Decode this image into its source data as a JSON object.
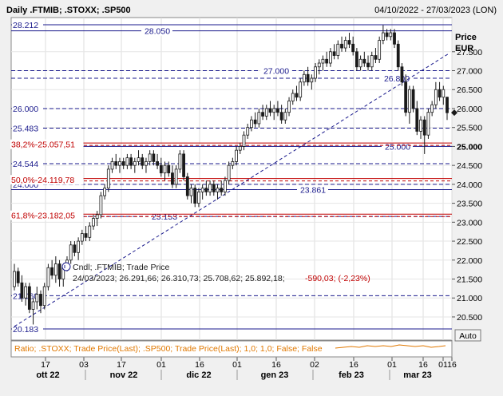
{
  "header": {
    "title": "Daily .FTMIB; .STOXX; .SP500",
    "date_range": "04/10/2022 - 27/03/2023 (LON)"
  },
  "axis": {
    "unit_label_1": "Price",
    "unit_label_2": "EUR",
    "auto_button": "Auto"
  },
  "legend": {
    "candle_line": "Cndl; .FTMIB; Trade Price",
    "ohlc_line": "24/03/2023; 26.291,66; 26.310,73; 25.708,62; 25.892,18;",
    "change_line": "-590,03; (-2,23%)"
  },
  "ratio_legend": {
    "text": "Ratio; .STOXX; Trade Price(Last); .SP500; Trade Price(Last);  1,0; 1,0; False; False",
    "color": "#e07800"
  },
  "colors": {
    "level_line": "#1a1a8c",
    "fib_line": "#c00000",
    "candle_up": "#ffffff",
    "candle_down": "#1a1a1a",
    "change_text": "#c00000"
  },
  "chart_data": {
    "type": "candlestick",
    "series_symbol": ".FTMIB",
    "ylim": [
      20.0,
      28.5
    ],
    "y_ticks": [
      "27.500",
      "27.000",
      "26.500",
      "26.000",
      "25.500",
      "25.000",
      "24.500",
      "24.000",
      "23.500",
      "23.000",
      "22.500",
      "22.000",
      "21.500",
      "21.000",
      "20.500"
    ],
    "current_price_label": "25.000",
    "x_day_ticks": [
      "17",
      "03",
      "17",
      "01",
      "16",
      "01",
      "16",
      "02",
      "16",
      "01",
      "16",
      "01",
      "16"
    ],
    "x_month_labels": [
      "ott 22",
      "nov 22",
      "dic 22",
      "gen 23",
      "feb 23",
      "mar 23"
    ],
    "levels": [
      {
        "value": 28.212,
        "label": "28.212",
        "pos": "left",
        "style": "solid"
      },
      {
        "value": 28.05,
        "label": "28.050",
        "pos": "center",
        "style": "solid"
      },
      {
        "value": 27.0,
        "label": "27.000",
        "pos": "center",
        "style": "dashed"
      },
      {
        "value": 26.8,
        "label": "26.800",
        "pos": "right",
        "style": "dashed"
      },
      {
        "value": 26.0,
        "label": "26.000",
        "pos": "left",
        "style": "dashed"
      },
      {
        "value": 25.483,
        "label": "25.483",
        "pos": "left",
        "style": "dashed"
      },
      {
        "value": 25.0,
        "label": "25.000",
        "pos": "right",
        "style": "solid"
      },
      {
        "value": 24.544,
        "label": "24.544",
        "pos": "left",
        "style": "dashed"
      },
      {
        "value": 24.0,
        "label": "24.000",
        "pos": "left",
        "style": "dashed"
      },
      {
        "value": 23.861,
        "label": "23.861",
        "pos": "center",
        "style": "solid"
      },
      {
        "value": 23.153,
        "label": "23.153",
        "pos": "center",
        "style": "dashed"
      },
      {
        "value": 21.06,
        "label": "21.060",
        "pos": "left",
        "style": "dashed"
      },
      {
        "value": 20.183,
        "label": "20.183",
        "pos": "left",
        "style": "solid"
      }
    ],
    "fib_levels": [
      {
        "value": 25.058,
        "label": "38,2%-25.057,51"
      },
      {
        "value": 24.12,
        "label": "50,0%-24.119,78"
      },
      {
        "value": 23.182,
        "label": "61,8%-23.182,05"
      }
    ],
    "trendline": [
      {
        "day": 0,
        "value": 20.25
      },
      {
        "day": 160,
        "value": 27.45
      }
    ],
    "candles": [
      {
        "day": 0,
        "o": 21.3,
        "h": 21.9,
        "l": 21.2,
        "c": 21.7
      },
      {
        "day": 1,
        "o": 21.7,
        "h": 21.8,
        "l": 21.3,
        "c": 21.4
      },
      {
        "day": 2,
        "o": 21.4,
        "h": 21.6,
        "l": 20.9,
        "c": 21.0
      },
      {
        "day": 3,
        "o": 21.0,
        "h": 21.4,
        "l": 20.8,
        "c": 21.3
      },
      {
        "day": 4,
        "o": 21.3,
        "h": 21.4,
        "l": 20.6,
        "c": 20.7
      },
      {
        "day": 5,
        "o": 20.7,
        "h": 21.0,
        "l": 20.3,
        "c": 20.9
      },
      {
        "day": 6,
        "o": 20.9,
        "h": 21.3,
        "l": 20.7,
        "c": 21.1
      },
      {
        "day": 7,
        "o": 21.1,
        "h": 21.2,
        "l": 20.6,
        "c": 20.8
      },
      {
        "day": 8,
        "o": 20.8,
        "h": 21.4,
        "l": 20.7,
        "c": 21.3
      },
      {
        "day": 9,
        "o": 21.3,
        "h": 21.9,
        "l": 21.2,
        "c": 21.8
      },
      {
        "day": 10,
        "o": 21.8,
        "h": 22.0,
        "l": 21.5,
        "c": 21.6
      },
      {
        "day": 11,
        "o": 21.6,
        "h": 22.1,
        "l": 21.4,
        "c": 21.9
      },
      {
        "day": 12,
        "o": 21.9,
        "h": 22.0,
        "l": 21.3,
        "c": 21.5
      },
      {
        "day": 13,
        "o": 21.5,
        "h": 21.9,
        "l": 21.3,
        "c": 21.8
      },
      {
        "day": 14,
        "o": 21.8,
        "h": 22.1,
        "l": 21.7,
        "c": 22.0
      },
      {
        "day": 15,
        "o": 22.0,
        "h": 22.5,
        "l": 21.9,
        "c": 22.4
      },
      {
        "day": 16,
        "o": 22.4,
        "h": 22.5,
        "l": 22.1,
        "c": 22.2
      },
      {
        "day": 17,
        "o": 22.2,
        "h": 22.6,
        "l": 22.0,
        "c": 22.5
      },
      {
        "day": 18,
        "o": 22.5,
        "h": 22.8,
        "l": 22.4,
        "c": 22.7
      },
      {
        "day": 19,
        "o": 22.7,
        "h": 22.9,
        "l": 22.5,
        "c": 22.6
      },
      {
        "day": 20,
        "o": 22.6,
        "h": 23.0,
        "l": 22.5,
        "c": 22.9
      },
      {
        "day": 21,
        "o": 22.9,
        "h": 23.2,
        "l": 22.8,
        "c": 23.1
      },
      {
        "day": 22,
        "o": 23.1,
        "h": 23.3,
        "l": 22.9,
        "c": 23.2
      },
      {
        "day": 23,
        "o": 23.2,
        "h": 23.8,
        "l": 23.1,
        "c": 23.7
      },
      {
        "day": 24,
        "o": 23.7,
        "h": 24.0,
        "l": 23.6,
        "c": 23.9
      },
      {
        "day": 25,
        "o": 23.9,
        "h": 24.5,
        "l": 23.8,
        "c": 24.4
      },
      {
        "day": 26,
        "o": 24.4,
        "h": 24.7,
        "l": 24.3,
        "c": 24.6
      },
      {
        "day": 27,
        "o": 24.6,
        "h": 24.8,
        "l": 24.4,
        "c": 24.5
      },
      {
        "day": 28,
        "o": 24.5,
        "h": 24.7,
        "l": 24.3,
        "c": 24.6
      },
      {
        "day": 29,
        "o": 24.6,
        "h": 24.7,
        "l": 24.4,
        "c": 24.5
      },
      {
        "day": 30,
        "o": 24.5,
        "h": 24.8,
        "l": 24.4,
        "c": 24.7
      },
      {
        "day": 31,
        "o": 24.7,
        "h": 24.8,
        "l": 24.4,
        "c": 24.5
      },
      {
        "day": 32,
        "o": 24.5,
        "h": 24.7,
        "l": 24.3,
        "c": 24.6
      },
      {
        "day": 33,
        "o": 24.6,
        "h": 24.9,
        "l": 24.5,
        "c": 24.7
      },
      {
        "day": 34,
        "o": 24.7,
        "h": 24.8,
        "l": 24.4,
        "c": 24.5
      },
      {
        "day": 35,
        "o": 24.5,
        "h": 24.7,
        "l": 24.3,
        "c": 24.6
      },
      {
        "day": 36,
        "o": 24.6,
        "h": 24.9,
        "l": 24.5,
        "c": 24.8
      },
      {
        "day": 37,
        "o": 24.8,
        "h": 24.9,
        "l": 24.5,
        "c": 24.6
      },
      {
        "day": 38,
        "o": 24.6,
        "h": 24.8,
        "l": 24.4,
        "c": 24.5
      },
      {
        "day": 39,
        "o": 24.5,
        "h": 24.7,
        "l": 24.2,
        "c": 24.3
      },
      {
        "day": 40,
        "o": 24.3,
        "h": 24.6,
        "l": 24.1,
        "c": 24.5
      },
      {
        "day": 41,
        "o": 24.5,
        "h": 24.6,
        "l": 24.2,
        "c": 24.3
      },
      {
        "day": 42,
        "o": 24.3,
        "h": 24.5,
        "l": 23.9,
        "c": 24.0
      },
      {
        "day": 43,
        "o": 24.0,
        "h": 24.5,
        "l": 23.9,
        "c": 24.4
      },
      {
        "day": 44,
        "o": 24.4,
        "h": 24.9,
        "l": 24.3,
        "c": 24.8
      },
      {
        "day": 45,
        "o": 24.8,
        "h": 24.9,
        "l": 24.1,
        "c": 24.2
      },
      {
        "day": 46,
        "o": 24.2,
        "h": 24.3,
        "l": 23.6,
        "c": 23.7
      },
      {
        "day": 47,
        "o": 23.7,
        "h": 24.0,
        "l": 23.5,
        "c": 23.9
      },
      {
        "day": 48,
        "o": 23.9,
        "h": 24.0,
        "l": 23.4,
        "c": 23.5
      },
      {
        "day": 49,
        "o": 23.5,
        "h": 23.9,
        "l": 23.4,
        "c": 23.8
      },
      {
        "day": 50,
        "o": 23.8,
        "h": 24.0,
        "l": 23.6,
        "c": 23.9
      },
      {
        "day": 51,
        "o": 23.9,
        "h": 24.1,
        "l": 23.7,
        "c": 23.8
      },
      {
        "day": 52,
        "o": 23.8,
        "h": 24.1,
        "l": 23.7,
        "c": 24.0
      },
      {
        "day": 53,
        "o": 24.0,
        "h": 24.1,
        "l": 23.7,
        "c": 23.8
      },
      {
        "day": 54,
        "o": 23.8,
        "h": 24.0,
        "l": 23.6,
        "c": 23.9
      },
      {
        "day": 55,
        "o": 23.9,
        "h": 24.1,
        "l": 23.7,
        "c": 23.8
      },
      {
        "day": 56,
        "o": 23.8,
        "h": 24.2,
        "l": 23.7,
        "c": 24.1
      },
      {
        "day": 57,
        "o": 24.1,
        "h": 24.6,
        "l": 24.0,
        "c": 24.5
      },
      {
        "day": 58,
        "o": 24.5,
        "h": 24.7,
        "l": 24.4,
        "c": 24.6
      },
      {
        "day": 59,
        "o": 24.6,
        "h": 25.0,
        "l": 24.5,
        "c": 24.9
      },
      {
        "day": 60,
        "o": 24.9,
        "h": 25.1,
        "l": 24.8,
        "c": 25.0
      },
      {
        "day": 61,
        "o": 25.0,
        "h": 25.4,
        "l": 24.9,
        "c": 25.3
      },
      {
        "day": 62,
        "o": 25.3,
        "h": 25.6,
        "l": 25.2,
        "c": 25.5
      },
      {
        "day": 63,
        "o": 25.5,
        "h": 25.8,
        "l": 25.4,
        "c": 25.7
      },
      {
        "day": 64,
        "o": 25.7,
        "h": 25.9,
        "l": 25.5,
        "c": 25.6
      },
      {
        "day": 65,
        "o": 25.6,
        "h": 26.0,
        "l": 25.5,
        "c": 25.9
      },
      {
        "day": 66,
        "o": 25.9,
        "h": 26.1,
        "l": 25.7,
        "c": 25.8
      },
      {
        "day": 67,
        "o": 25.8,
        "h": 26.1,
        "l": 25.7,
        "c": 26.0
      },
      {
        "day": 68,
        "o": 26.0,
        "h": 26.2,
        "l": 25.8,
        "c": 25.9
      },
      {
        "day": 69,
        "o": 25.9,
        "h": 26.1,
        "l": 25.7,
        "c": 26.0
      },
      {
        "day": 70,
        "o": 26.0,
        "h": 26.2,
        "l": 25.8,
        "c": 25.9
      },
      {
        "day": 71,
        "o": 25.9,
        "h": 26.1,
        "l": 25.6,
        "c": 25.7
      },
      {
        "day": 72,
        "o": 25.7,
        "h": 26.0,
        "l": 25.6,
        "c": 25.9
      },
      {
        "day": 73,
        "o": 25.9,
        "h": 26.3,
        "l": 25.8,
        "c": 26.2
      },
      {
        "day": 74,
        "o": 26.2,
        "h": 26.5,
        "l": 26.1,
        "c": 26.4
      },
      {
        "day": 75,
        "o": 26.4,
        "h": 26.6,
        "l": 26.2,
        "c": 26.3
      },
      {
        "day": 76,
        "o": 26.3,
        "h": 26.8,
        "l": 26.2,
        "c": 26.7
      },
      {
        "day": 77,
        "o": 26.7,
        "h": 27.0,
        "l": 26.6,
        "c": 26.9
      },
      {
        "day": 78,
        "o": 26.9,
        "h": 27.1,
        "l": 26.6,
        "c": 26.7
      },
      {
        "day": 79,
        "o": 26.7,
        "h": 26.9,
        "l": 26.5,
        "c": 26.8
      },
      {
        "day": 80,
        "o": 26.8,
        "h": 27.2,
        "l": 26.7,
        "c": 27.1
      },
      {
        "day": 81,
        "o": 27.1,
        "h": 27.3,
        "l": 26.9,
        "c": 27.2
      },
      {
        "day": 82,
        "o": 27.2,
        "h": 27.4,
        "l": 27.0,
        "c": 27.3
      },
      {
        "day": 83,
        "o": 27.3,
        "h": 27.5,
        "l": 27.1,
        "c": 27.2
      },
      {
        "day": 84,
        "o": 27.2,
        "h": 27.6,
        "l": 27.1,
        "c": 27.5
      },
      {
        "day": 85,
        "o": 27.5,
        "h": 27.7,
        "l": 27.3,
        "c": 27.4
      },
      {
        "day": 86,
        "o": 27.4,
        "h": 27.8,
        "l": 27.3,
        "c": 27.7
      },
      {
        "day": 87,
        "o": 27.7,
        "h": 27.9,
        "l": 27.5,
        "c": 27.6
      },
      {
        "day": 88,
        "o": 27.6,
        "h": 27.9,
        "l": 27.5,
        "c": 27.8
      },
      {
        "day": 89,
        "o": 27.8,
        "h": 28.0,
        "l": 27.6,
        "c": 27.7
      },
      {
        "day": 90,
        "o": 27.7,
        "h": 27.9,
        "l": 27.4,
        "c": 27.5
      },
      {
        "day": 91,
        "o": 27.5,
        "h": 27.6,
        "l": 27.0,
        "c": 27.1
      },
      {
        "day": 92,
        "o": 27.1,
        "h": 27.4,
        "l": 27.0,
        "c": 27.3
      },
      {
        "day": 93,
        "o": 27.3,
        "h": 27.5,
        "l": 27.1,
        "c": 27.2
      },
      {
        "day": 94,
        "o": 27.2,
        "h": 27.4,
        "l": 27.0,
        "c": 27.1
      },
      {
        "day": 95,
        "o": 27.1,
        "h": 27.5,
        "l": 27.0,
        "c": 27.4
      },
      {
        "day": 96,
        "o": 27.4,
        "h": 27.6,
        "l": 27.2,
        "c": 27.3
      },
      {
        "day": 97,
        "o": 27.3,
        "h": 27.9,
        "l": 27.2,
        "c": 27.8
      },
      {
        "day": 98,
        "o": 27.8,
        "h": 28.2,
        "l": 27.7,
        "c": 28.0
      },
      {
        "day": 99,
        "o": 28.0,
        "h": 28.1,
        "l": 27.8,
        "c": 27.9
      },
      {
        "day": 100,
        "o": 27.9,
        "h": 28.1,
        "l": 27.8,
        "c": 28.0
      },
      {
        "day": 101,
        "o": 28.0,
        "h": 28.1,
        "l": 27.6,
        "c": 27.7
      },
      {
        "day": 102,
        "o": 27.7,
        "h": 27.8,
        "l": 27.0,
        "c": 27.1
      },
      {
        "day": 103,
        "o": 27.1,
        "h": 27.2,
        "l": 26.6,
        "c": 26.7
      },
      {
        "day": 104,
        "o": 26.7,
        "h": 26.9,
        "l": 25.8,
        "c": 25.9
      },
      {
        "day": 105,
        "o": 25.9,
        "h": 26.6,
        "l": 25.6,
        "c": 26.5
      },
      {
        "day": 106,
        "o": 26.5,
        "h": 26.6,
        "l": 25.9,
        "c": 26.0
      },
      {
        "day": 107,
        "o": 26.0,
        "h": 26.2,
        "l": 25.3,
        "c": 25.4
      },
      {
        "day": 108,
        "o": 25.4,
        "h": 25.8,
        "l": 25.2,
        "c": 25.7
      },
      {
        "day": 109,
        "o": 25.7,
        "h": 25.8,
        "l": 24.8,
        "c": 25.3
      },
      {
        "day": 110,
        "o": 25.3,
        "h": 26.0,
        "l": 25.2,
        "c": 25.9
      },
      {
        "day": 111,
        "o": 25.9,
        "h": 26.2,
        "l": 25.8,
        "c": 26.1
      },
      {
        "day": 112,
        "o": 26.1,
        "h": 26.7,
        "l": 26.0,
        "c": 26.5
      },
      {
        "day": 113,
        "o": 26.5,
        "h": 26.7,
        "l": 26.2,
        "c": 26.3
      },
      {
        "day": 114,
        "o": 26.3,
        "h": 26.6,
        "l": 26.1,
        "c": 26.5
      },
      {
        "day": 115,
        "o": 26.3,
        "h": 26.31,
        "l": 25.7,
        "c": 25.89
      }
    ]
  }
}
